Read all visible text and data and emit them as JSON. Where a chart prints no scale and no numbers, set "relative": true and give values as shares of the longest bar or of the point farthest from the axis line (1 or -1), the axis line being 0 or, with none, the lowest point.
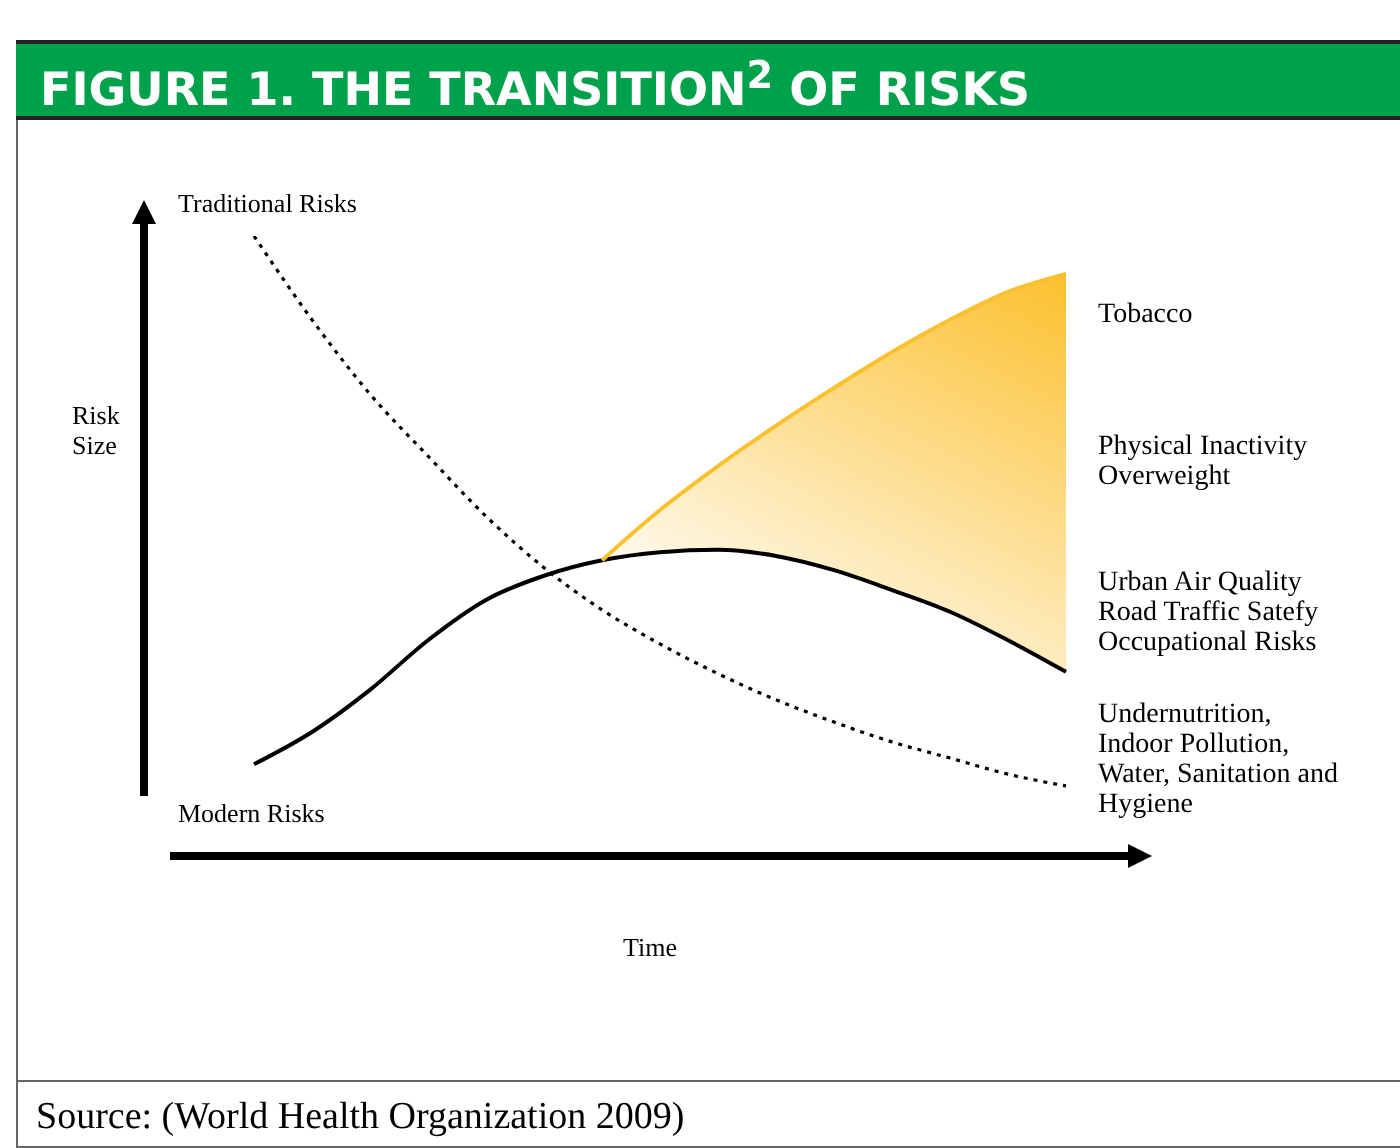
{
  "chart_data": {
    "type": "line",
    "title": "FIGURE 1. THE TRANSITION$^{2}$ OF RISKS",
    "xlabel": "Time",
    "relative": true,
    "categories": [
      null,
      null,
      null,
      null,
      null,
      null,
      null,
      null,
      null,
      null,
      null,
      null,
      null,
      null,
      null
    ],
    "series": [
      {
        "name": "Traditional Risks",
        "color": "#000000",
        "line_style": "dotted",
        "values": [
          1,
          0.865,
          0.745,
          0.645,
          0.548,
          0.465,
          0.397,
          0.342,
          0.294,
          0.252,
          0.216,
          0.184,
          0.158,
          0.132,
          0.113
        ]
      },
      {
        "name": "Modern Risks",
        "color": "#000000",
        "line_style": "solid",
        "values": [
          0.148,
          0.2,
          0.268,
          0.348,
          0.413,
          0.452,
          0.477,
          0.49,
          0.494,
          0.484,
          0.461,
          0.429,
          0.394,
          0.348,
          0.297
        ]
      },
      {
        "color": "#fbc02d",
        "line_style": "solid",
        "values": [
          null,
          null,
          null,
          null,
          null,
          null,
          0.477,
          0.558,
          0.629,
          0.694,
          0.755,
          0.813,
          0.865,
          0.91,
          0.939
        ],
        "lower": [
          null,
          null,
          null,
          null,
          null,
          null,
          0.477,
          0.49,
          0.494,
          0.484,
          0.461,
          0.429,
          0.394,
          0.348,
          0.297
        ],
        "upper": [
          null,
          null,
          null,
          null,
          null,
          null,
          0.477,
          0.558,
          0.629,
          0.694,
          0.755,
          0.813,
          0.865,
          0.91,
          0.939
        ]
      }
    ],
    "annotations": [
      "Risk Size",
      "Tobacco",
      "Physical Inactivity Overweight",
      "Urban Air Quality Road Traffic Satefy Occupational Risks",
      "Undernutrition, Indoor Pollution, Water, Sanitation and Hygiene",
      "Source: (World Health Organization 2009)"
    ]
  }
}
